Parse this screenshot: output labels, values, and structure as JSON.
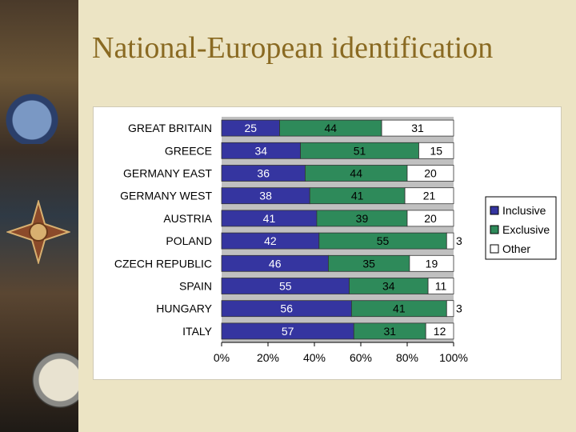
{
  "slide": {
    "title": "National-European identification"
  },
  "chart_data": {
    "type": "bar",
    "orientation": "horizontal",
    "stacked": "percent",
    "categories": [
      "GREAT BRITAIN",
      "GREECE",
      "GERMANY EAST",
      "GERMANY WEST",
      "AUSTRIA",
      "POLAND",
      "CZECH REPUBLIC",
      "SPAIN",
      "HUNGARY",
      "ITALY"
    ],
    "series": [
      {
        "name": "Inclusive",
        "color": "#3535a0",
        "values": [
          25,
          34,
          36,
          38,
          41,
          42,
          46,
          55,
          56,
          57
        ]
      },
      {
        "name": "Exclusive",
        "color": "#2e8a5a",
        "values": [
          44,
          51,
          44,
          41,
          39,
          55,
          35,
          34,
          41,
          31
        ]
      },
      {
        "name": "Other",
        "color": "#ffffff",
        "values": [
          31,
          15,
          20,
          21,
          20,
          3,
          19,
          11,
          3,
          12
        ]
      }
    ],
    "xlim": [
      0,
      100
    ],
    "x_ticks": [
      "0%",
      "20%",
      "40%",
      "60%",
      "80%",
      "100%"
    ],
    "plot_background": "#c0c0c0",
    "grid": false,
    "legend_position": "right"
  }
}
